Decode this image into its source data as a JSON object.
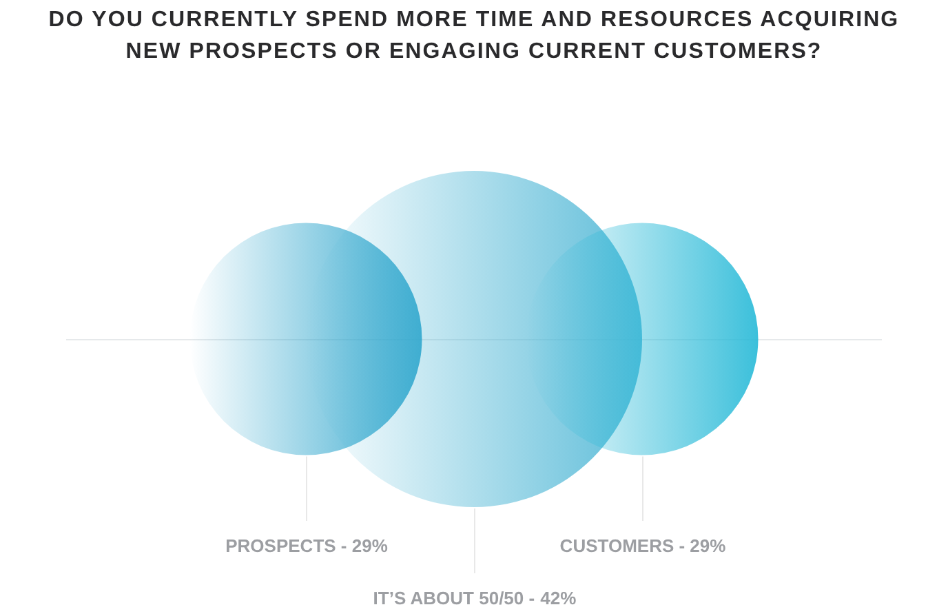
{
  "chart_data": {
    "type": "other",
    "title": "DO YOU CURRENTLY SPEND MORE TIME AND RESOURCES ACQUIRING NEW PROSPECTS OR ENGAGING CURRENT CUSTOMERS?",
    "categories": [
      "PROSPECTS -",
      "IT’S ABOUT 50/50 -",
      "CUSTOMERS -"
    ],
    "values": [
      29,
      42,
      29
    ],
    "value_labels": [
      "29%",
      "42%",
      "29%"
    ],
    "colors": [
      "#24a1ca",
      "#4db6d5",
      "#26b9d7"
    ]
  }
}
